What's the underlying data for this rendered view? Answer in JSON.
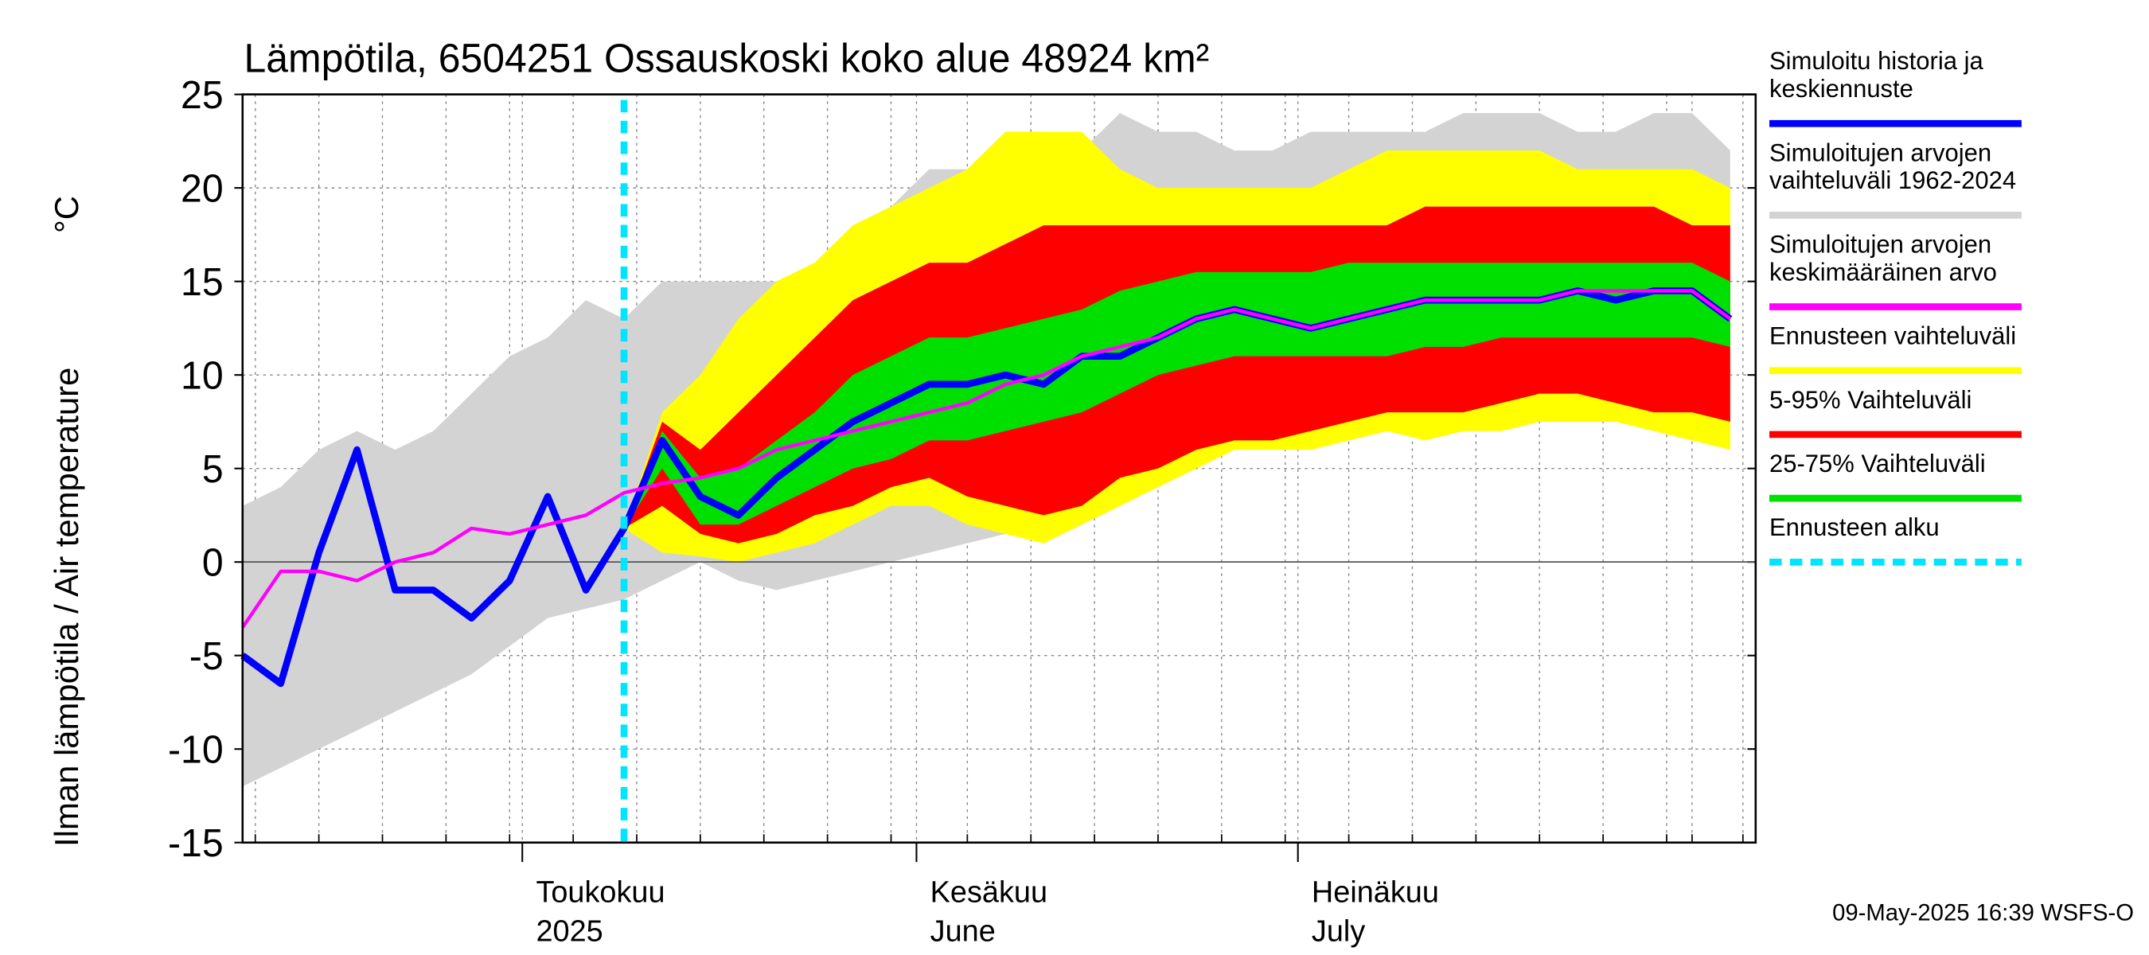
{
  "chart_data": {
    "type": "line",
    "title": "Lämpötila, 6504251 Ossauskoski koko alue 48924 km²",
    "ylabel": "Ilman lämpötila / Air temperature",
    "yunit": "°C",
    "footer": "09-May-2025 16:39 WSFS-O",
    "ylim": [
      -15,
      25
    ],
    "yticks": [
      25,
      20,
      15,
      10,
      5,
      0,
      -5,
      -10,
      -15
    ],
    "xlim": [
      "2025-04-09",
      "2025-08-06"
    ],
    "xticks": [
      {
        "value": "2025-05-01",
        "label": [
          "Toukokuu",
          "2025"
        ]
      },
      {
        "value": "2025-06-01",
        "label": [
          "Kesäkuu",
          "June"
        ]
      },
      {
        "value": "2025-07-01",
        "label": [
          "Heinäkuu",
          "July"
        ]
      }
    ],
    "xgrid": [
      "2025-04-10",
      "2025-04-15",
      "2025-04-20",
      "2025-04-25",
      "2025-04-30",
      "2025-05-05",
      "2025-05-10",
      "2025-05-15",
      "2025-05-20",
      "2025-05-25",
      "2025-05-30",
      "2025-06-05",
      "2025-06-10",
      "2025-06-15",
      "2025-06-20",
      "2025-06-25",
      "2025-06-30",
      "2025-07-05",
      "2025-07-10",
      "2025-07-15",
      "2025-07-20",
      "2025-07-25",
      "2025-07-30",
      "2025-08-01",
      "2025-08-05"
    ],
    "grid": true,
    "x": [
      "2025-04-09",
      "2025-04-12",
      "2025-04-15",
      "2025-04-18",
      "2025-04-21",
      "2025-04-24",
      "2025-04-27",
      "2025-04-30",
      "2025-05-03",
      "2025-05-06",
      "2025-05-09",
      "2025-05-12",
      "2025-05-15",
      "2025-05-18",
      "2025-05-21",
      "2025-05-24",
      "2025-05-27",
      "2025-05-30",
      "2025-06-02",
      "2025-06-05",
      "2025-06-08",
      "2025-06-11",
      "2025-06-14",
      "2025-06-17",
      "2025-06-20",
      "2025-06-23",
      "2025-06-26",
      "2025-06-29",
      "2025-07-02",
      "2025-07-05",
      "2025-07-08",
      "2025-07-11",
      "2025-07-14",
      "2025-07-17",
      "2025-07-20",
      "2025-07-23",
      "2025-07-26",
      "2025-07-29",
      "2025-08-01",
      "2025-08-04"
    ],
    "bands": [
      {
        "name": [
          "Simuloitujen arvojen",
          "vaihteluväli 1962-2024"
        ],
        "color": "#d3d3d3",
        "low": [
          -12,
          -11,
          -10,
          -9,
          -8,
          -7,
          -6,
          -4.5,
          -3,
          -2.5,
          -2,
          -1,
          0,
          -1,
          -1.5,
          -1,
          -0.5,
          0,
          0.5,
          1,
          1.5,
          2,
          3,
          4,
          4.5,
          5.5,
          6,
          6.5,
          6.5,
          6.5,
          7,
          7,
          7,
          7,
          7.5,
          7.5,
          7.5,
          7,
          7,
          6
        ],
        "high": [
          3,
          4,
          6,
          7,
          6,
          7,
          9,
          11,
          12,
          14,
          13,
          15,
          15,
          15,
          15,
          16,
          18,
          19,
          21,
          21,
          23,
          23,
          22,
          24,
          23,
          23,
          22,
          22,
          23,
          23,
          23,
          23,
          24,
          24,
          24,
          23,
          23,
          24,
          24,
          22
        ]
      },
      {
        "name": [
          "Ennusteen vaihteluväli"
        ],
        "color": "#ffff00",
        "low": [
          null,
          null,
          null,
          null,
          null,
          null,
          null,
          null,
          null,
          null,
          1.8,
          0.5,
          0.3,
          0,
          0.5,
          1,
          2,
          3,
          3,
          2,
          1.5,
          1,
          2,
          3,
          4,
          5,
          6,
          6,
          6,
          6.5,
          7,
          6.5,
          7,
          7,
          7.5,
          7.5,
          7.5,
          7,
          6.5,
          6
        ],
        "high": [
          null,
          null,
          null,
          null,
          null,
          null,
          null,
          null,
          null,
          null,
          1.8,
          8,
          10,
          13,
          15,
          16,
          18,
          19,
          20,
          21,
          23,
          23,
          23,
          21,
          20,
          20,
          20,
          20,
          20,
          21,
          22,
          22,
          22,
          22,
          22,
          21,
          21,
          21,
          21,
          20
        ]
      },
      {
        "name": [
          "5-95% Vaihteluväli"
        ],
        "color": "#ff0000",
        "low": [
          null,
          null,
          null,
          null,
          null,
          null,
          null,
          null,
          null,
          null,
          1.8,
          3,
          1.5,
          1,
          1.5,
          2.5,
          3,
          4,
          4.5,
          3.5,
          3,
          2.5,
          3,
          4.5,
          5,
          6,
          6.5,
          6.5,
          7,
          7.5,
          8,
          8,
          8,
          8.5,
          9,
          9,
          8.5,
          8,
          8,
          7.5
        ],
        "high": [
          null,
          null,
          null,
          null,
          null,
          null,
          null,
          null,
          null,
          null,
          1.8,
          7.5,
          6,
          8,
          10,
          12,
          14,
          15,
          16,
          16,
          17,
          18,
          18,
          18,
          18,
          18,
          18,
          18,
          18,
          18,
          18,
          19,
          19,
          19,
          19,
          19,
          19,
          19,
          18,
          18
        ]
      },
      {
        "name": [
          "25-75% Vaihteluväli"
        ],
        "color": "#00e000",
        "low": [
          null,
          null,
          null,
          null,
          null,
          null,
          null,
          null,
          null,
          null,
          1.8,
          5,
          2,
          2,
          3,
          4,
          5,
          5.5,
          6.5,
          6.5,
          7,
          7.5,
          8,
          9,
          10,
          10.5,
          11,
          11,
          11,
          11,
          11,
          11.5,
          11.5,
          12,
          12,
          12,
          12,
          12,
          12,
          11.5
        ],
        "high": [
          null,
          null,
          null,
          null,
          null,
          null,
          null,
          null,
          null,
          null,
          1.8,
          7,
          4.5,
          5,
          6.5,
          8,
          10,
          11,
          12,
          12,
          12.5,
          13,
          13.5,
          14.5,
          15,
          15.5,
          15.5,
          15.5,
          15.5,
          16,
          16,
          16,
          16,
          16,
          16,
          16,
          16,
          16,
          16,
          15
        ]
      }
    ],
    "series": [
      {
        "name": [
          "Simuloitu historia ja",
          "keskiennuste"
        ],
        "color": "#0000ff",
        "values": [
          -5,
          -6.5,
          0.5,
          6,
          -1.5,
          -1.5,
          -3,
          -1,
          3.5,
          -1.5,
          1.8,
          6.5,
          3.5,
          2.5,
          4.5,
          6,
          7.5,
          8.5,
          9.5,
          9.5,
          10,
          9.5,
          11,
          11,
          12,
          13,
          13.5,
          13,
          12.5,
          13,
          13.5,
          14,
          14,
          14,
          14,
          14.5,
          14,
          14.5,
          14.5,
          13
        ]
      },
      {
        "name": [
          "Simuloitujen arvojen",
          "keskimääräinen arvo"
        ],
        "color": "#ff00ff",
        "values": [
          -3.5,
          -0.5,
          -0.5,
          -1,
          0,
          0.5,
          1.8,
          1.5,
          2,
          2.5,
          3.7,
          4.2,
          4.5,
          5,
          6,
          6.5,
          7,
          7.5,
          8,
          8.5,
          9.5,
          10,
          11,
          11.5,
          12,
          13,
          13.5,
          13,
          12.5,
          13,
          13.5,
          14,
          14,
          14,
          14,
          14.5,
          14.5,
          14.5,
          14.5,
          13
        ]
      }
    ],
    "forecast_start": {
      "name": [
        "Ennusteen alku"
      ],
      "color": "#00e5ff",
      "x": "2025-05-09"
    },
    "legend": [
      "series.0",
      "bands.0",
      "series.1",
      "bands.1",
      "bands.2",
      "bands.3",
      "forecast_start"
    ]
  }
}
